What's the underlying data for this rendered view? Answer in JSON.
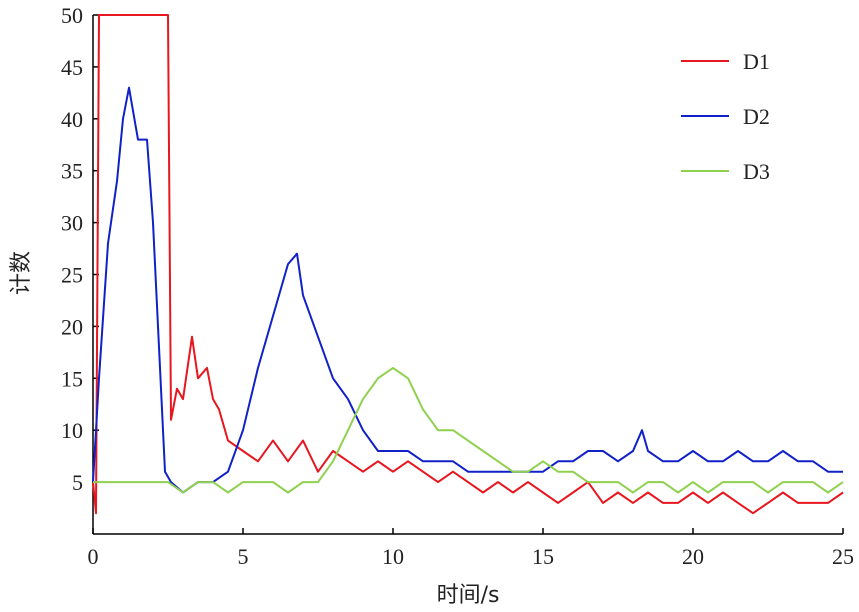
{
  "chart_data": {
    "type": "line",
    "title": "",
    "xlabel": "时间/s",
    "ylabel": "计数",
    "xlim": [
      0,
      25
    ],
    "ylim": [
      0,
      50
    ],
    "xticks": [
      "0",
      "5",
      "10",
      "15",
      "20",
      "25"
    ],
    "yticks": [
      "5",
      "10",
      "15",
      "20",
      "25",
      "30",
      "35",
      "40",
      "45",
      "50"
    ],
    "grid": false,
    "legend": "top-right",
    "series": [
      {
        "name": "D1",
        "color": "#e8161e",
        "x": [
          0.0,
          0.1,
          0.2,
          0.3,
          0.5,
          1.0,
          1.5,
          2.0,
          2.2,
          2.3,
          2.4,
          2.5,
          2.6,
          2.8,
          3.0,
          3.3,
          3.5,
          3.8,
          4.0,
          4.2,
          4.5,
          5.0,
          5.5,
          6.0,
          6.5,
          7.0,
          7.5,
          8.0,
          8.5,
          9.0,
          9.5,
          10.0,
          10.5,
          11.0,
          11.5,
          12.0,
          12.5,
          13.0,
          13.5,
          14.0,
          14.5,
          15.0,
          15.5,
          16.0,
          16.5,
          17.0,
          17.5,
          18.0,
          18.5,
          19.0,
          19.5,
          20.0,
          20.5,
          21.0,
          21.5,
          22.0,
          22.5,
          23.0,
          23.5,
          24.0,
          24.5,
          25.0
        ],
        "y": [
          5,
          2,
          50,
          50,
          50,
          50,
          50,
          50,
          50,
          50,
          50,
          50,
          11,
          14,
          13,
          19,
          15,
          16,
          13,
          12,
          9,
          8,
          7,
          9,
          7,
          9,
          6,
          8,
          7,
          6,
          7,
          6,
          7,
          6,
          5,
          6,
          5,
          4,
          5,
          4,
          5,
          4,
          3,
          4,
          5,
          3,
          4,
          3,
          4,
          3,
          3,
          4,
          3,
          4,
          3,
          2,
          3,
          4,
          3,
          3,
          3,
          4
        ]
      },
      {
        "name": "D2",
        "color": "#1021c8",
        "x": [
          0.0,
          0.2,
          0.5,
          0.8,
          1.0,
          1.2,
          1.5,
          1.8,
          2.0,
          2.2,
          2.4,
          2.6,
          3.0,
          3.5,
          4.0,
          4.5,
          5.0,
          5.5,
          6.0,
          6.5,
          6.8,
          7.0,
          7.5,
          8.0,
          8.5,
          9.0,
          9.5,
          10.0,
          10.5,
          11.0,
          11.5,
          12.0,
          12.5,
          13.0,
          13.5,
          14.0,
          14.5,
          15.0,
          15.5,
          16.0,
          16.5,
          17.0,
          17.5,
          18.0,
          18.3,
          18.5,
          19.0,
          19.5,
          20.0,
          20.5,
          21.0,
          21.5,
          22.0,
          22.5,
          23.0,
          23.5,
          24.0,
          24.5,
          25.0
        ],
        "y": [
          5,
          15,
          28,
          34,
          40,
          43,
          38,
          38,
          30,
          18,
          6,
          5,
          4,
          5,
          5,
          6,
          10,
          16,
          21,
          26,
          27,
          23,
          19,
          15,
          13,
          10,
          8,
          8,
          8,
          7,
          7,
          7,
          6,
          6,
          6,
          6,
          6,
          6,
          7,
          7,
          8,
          8,
          7,
          8,
          10,
          8,
          7,
          7,
          8,
          7,
          7,
          8,
          7,
          7,
          8,
          7,
          7,
          6,
          6
        ]
      },
      {
        "name": "D3",
        "color": "#8fd14f",
        "x": [
          0.0,
          0.5,
          1.0,
          1.5,
          2.0,
          2.5,
          3.0,
          3.5,
          4.0,
          4.5,
          5.0,
          5.5,
          6.0,
          6.5,
          7.0,
          7.5,
          8.0,
          8.5,
          9.0,
          9.5,
          10.0,
          10.5,
          11.0,
          11.5,
          12.0,
          12.5,
          13.0,
          13.5,
          14.0,
          14.5,
          15.0,
          15.5,
          16.0,
          16.5,
          17.0,
          17.5,
          18.0,
          18.5,
          19.0,
          19.5,
          20.0,
          20.5,
          21.0,
          21.5,
          22.0,
          22.5,
          23.0,
          23.5,
          24.0,
          24.5,
          25.0
        ],
        "y": [
          5,
          5,
          5,
          5,
          5,
          5,
          4,
          5,
          5,
          4,
          5,
          5,
          5,
          4,
          5,
          5,
          7,
          10,
          13,
          15,
          16,
          15,
          12,
          10,
          10,
          9,
          8,
          7,
          6,
          6,
          7,
          6,
          6,
          5,
          5,
          5,
          4,
          5,
          5,
          4,
          5,
          4,
          5,
          5,
          5,
          4,
          5,
          5,
          5,
          4,
          5
        ]
      }
    ]
  }
}
